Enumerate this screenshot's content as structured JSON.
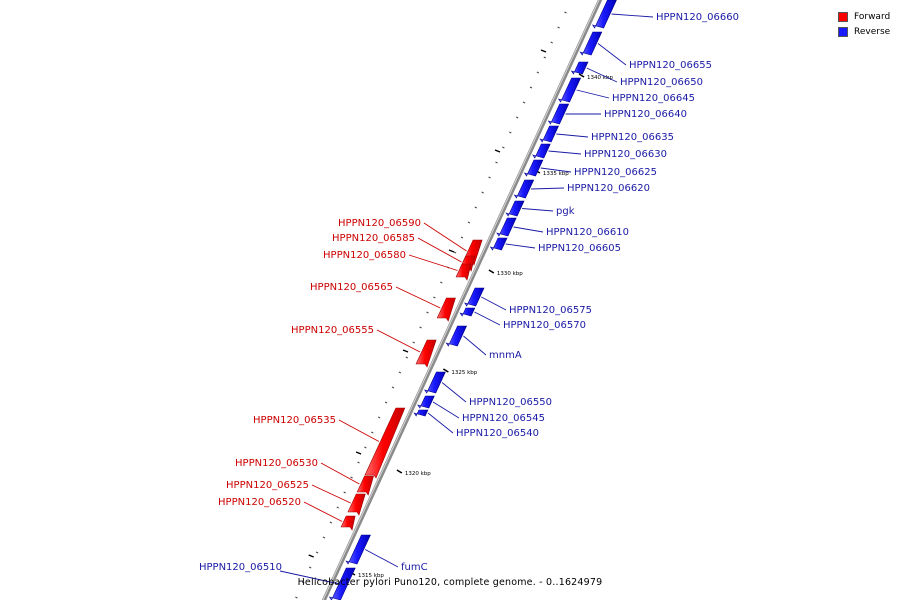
{
  "colors": {
    "forward": "#ff0000",
    "reverse": "#1a1aff",
    "backbone": "#999999",
    "label_forward": "#cc0000",
    "label_reverse": "#1a1aa6"
  },
  "legend": {
    "forward_label": "Forward",
    "reverse_label": "Reverse"
  },
  "caption": "Helicobacter pylori Puno120, complete genome. - 0..1624979",
  "scale_labels": [
    "1340 kbp",
    "1335 kbp",
    "1330 kbp",
    "1325 kbp",
    "1320 kbp",
    "1315 kbp"
  ],
  "forward_genes": [
    "HPPN120_06590",
    "HPPN120_06585",
    "HPPN120_06580",
    "HPPN120_06565",
    "HPPN120_06555",
    "HPPN120_06535",
    "HPPN120_06530",
    "HPPN120_06525",
    "HPPN120_06520"
  ],
  "reverse_genes": [
    "HPPN120_06660",
    "HPPN120_06655",
    "HPPN120_06650",
    "HPPN120_06645",
    "HPPN120_06640",
    "HPPN120_06635",
    "HPPN120_06630",
    "HPPN120_06625",
    "HPPN120_06620",
    "pgk",
    "HPPN120_06610",
    "HPPN120_06605",
    "HPPN120_06575",
    "HPPN120_06570",
    "mnmA",
    "HPPN120_06550",
    "HPPN120_06545",
    "HPPN120_06540",
    "fumC",
    "HPPN120_06510"
  ]
}
